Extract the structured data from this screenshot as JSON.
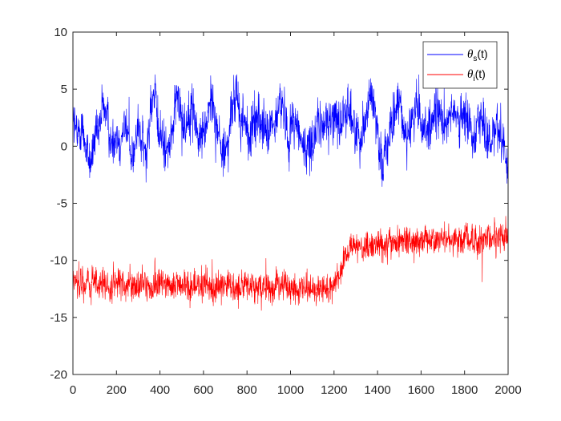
{
  "chart_data": {
    "type": "line",
    "title": "",
    "xlabel": "",
    "ylabel": "",
    "xlim": [
      0,
      2000
    ],
    "ylim": [
      -20,
      10
    ],
    "x_ticks": [
      0,
      200,
      400,
      600,
      800,
      1000,
      1200,
      1400,
      1600,
      1800,
      2000
    ],
    "y_ticks": [
      -20,
      -15,
      -10,
      -5,
      0,
      5,
      10
    ],
    "grid": false,
    "legend_position": "top-right",
    "n_points": 2000,
    "series": [
      {
        "name": "θs(t)",
        "legend_symbol": "θ",
        "legend_subscript": "s",
        "legend_suffix": "(t)",
        "color": "#0000ff",
        "approx_values": [
          2.8,
          0.5,
          2.0,
          0.0,
          -1.5,
          0.5,
          1.0,
          3.8,
          2.5,
          0.0,
          1.0,
          0.5,
          2.0,
          0.5,
          -1.0,
          1.5,
          0.5,
          -1.0,
          3.5,
          4.5,
          1.0,
          0.5,
          -0.5,
          1.0,
          4.0,
          3.5,
          1.5,
          3.0,
          3.5,
          0.5,
          1.0,
          2.0,
          4.5,
          3.0,
          0.5,
          -0.5,
          0.0,
          3.5,
          4.5,
          2.0,
          2.5,
          0.0,
          2.5,
          2.5,
          2.0,
          1.0,
          1.5,
          1.5,
          4.0,
          3.0,
          0.5,
          2.5,
          2.0,
          0.5,
          -0.5,
          0.0,
          1.0,
          2.0,
          1.5,
          2.5,
          2.0,
          3.0,
          2.0,
          2.5,
          3.5,
          2.0,
          1.0,
          1.0,
          2.5,
          4.5,
          3.5,
          0.5,
          -1.5,
          0.5,
          1.0,
          3.5,
          3.5,
          1.5,
          1.0,
          2.5,
          3.5,
          1.5,
          2.0,
          1.0,
          3.0,
          2.5,
          2.0,
          2.5,
          3.5,
          2.0,
          2.0,
          2.5,
          2.0,
          1.0,
          2.5,
          2.5,
          0.5,
          0.0,
          2.0,
          1.5,
          0.5,
          -2.5
        ],
        "noise_amplitude": 1.8
      },
      {
        "name": "θi(t)",
        "legend_symbol": "θ",
        "legend_subscript": "i",
        "legend_suffix": "(t)",
        "color": "#ff0000",
        "approx_values": [
          -11.5,
          -12.0,
          -12.0,
          -12.2,
          -12.0,
          -11.5,
          -12.3,
          -12.0,
          -12.5,
          -12.3,
          -12.0,
          -12.0,
          -12.5,
          -12.3,
          -12.3,
          -12.5,
          -12.0,
          -12.3,
          -12.3,
          -12.2,
          -12.0,
          -12.0,
          -12.1,
          -12.3,
          -12.5,
          -12.2,
          -12.0,
          -12.5,
          -12.3,
          -12.4,
          -12.5,
          -12.2,
          -12.3,
          -12.5,
          -12.0,
          -12.2,
          -12.2,
          -12.4,
          -12.5,
          -12.3,
          -12.2,
          -12.3,
          -12.5,
          -12.3,
          -12.4,
          -12.5,
          -12.3,
          -12.2,
          -12.3,
          -12.2,
          -12.5,
          -12.5,
          -12.5,
          -12.3,
          -12.3,
          -12.8,
          -12.5,
          -12.3,
          -12.5,
          -12.4,
          -12.0,
          -11.5,
          -10.5,
          -9.5,
          -8.8,
          -8.7,
          -9.0,
          -9.0,
          -8.8,
          -8.5,
          -8.7,
          -8.8,
          -8.6,
          -8.3,
          -8.5,
          -8.3,
          -8.2,
          -8.5,
          -8.4,
          -8.3,
          -8.2,
          -8.1,
          -8.3,
          -8.2,
          -8.3,
          -8.0,
          -8.0,
          -8.3,
          -8.5,
          -8.2,
          -8.0,
          -8.1,
          -8.3,
          -8.5,
          -8.0,
          -8.2,
          -8.2,
          -8.0,
          -7.9,
          -8.0,
          -8.0
        ],
        "noise_amplitude": 1.1
      }
    ]
  }
}
